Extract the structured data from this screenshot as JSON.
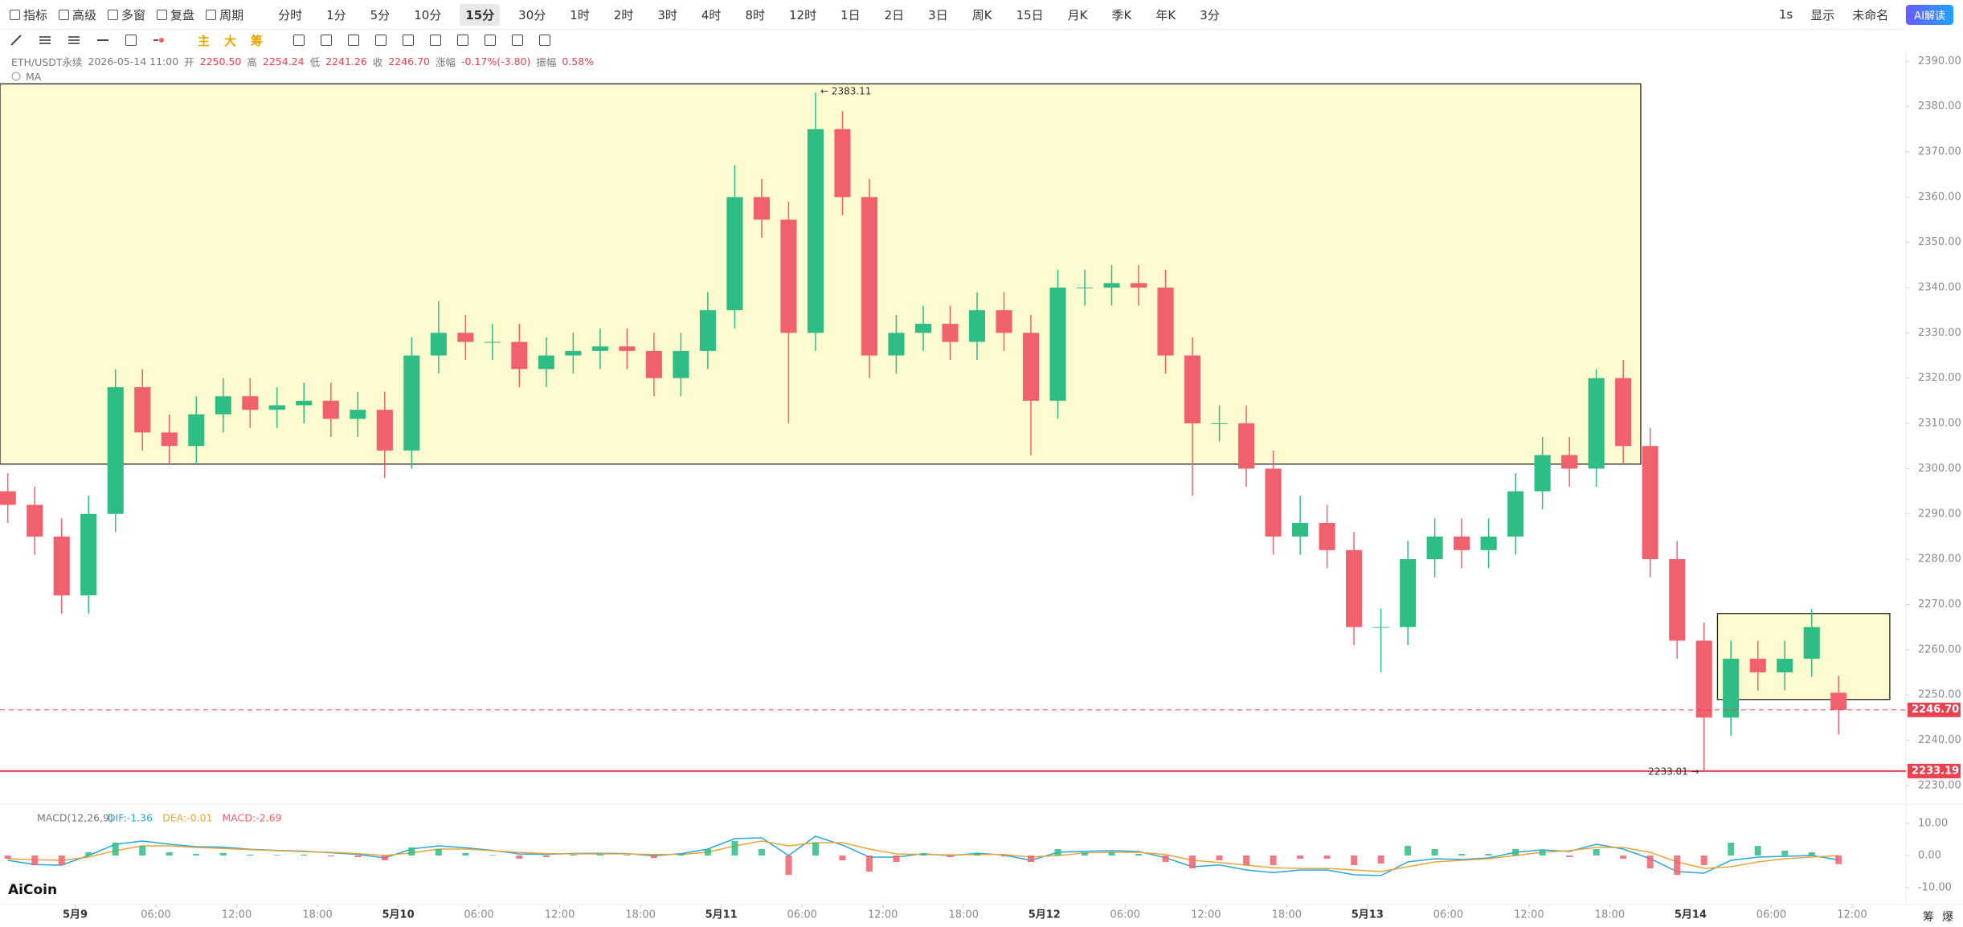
{
  "ui": {
    "toolbar_left": [
      "指标",
      "高级",
      "多窗",
      "复盘",
      "周期"
    ],
    "periods": [
      "分时",
      "1分",
      "5分",
      "10分",
      "15分",
      "30分",
      "1时",
      "2时",
      "3时",
      "4时",
      "8时",
      "12时",
      "1日",
      "2日",
      "3日",
      "周K",
      "15日",
      "月K",
      "季K",
      "年K",
      "3分"
    ],
    "active_period": 4,
    "toolbar_right": [
      "1s",
      "显示",
      "未命名",
      "AI解读"
    ],
    "draw_tools": [
      "主",
      "大",
      "筹"
    ],
    "info": {
      "symbol": "ETH/USDT永续",
      "time": "2026-05-14 11:00",
      "fields": [
        {
          "label": "开",
          "value": "2250.50"
        },
        {
          "label": "高",
          "value": "2254.24"
        },
        {
          "label": "低",
          "value": "2241.26"
        },
        {
          "label": "收",
          "value": "2246.70"
        },
        {
          "label": "涨幅",
          "value": "-0.17%(-3.80)"
        },
        {
          "label": "振幅",
          "value": "0.58%"
        }
      ]
    },
    "indicator": "MA",
    "logo": "AiCoin",
    "corner": [
      "筹",
      "爆"
    ]
  },
  "chart_data": [
    {
      "type": "candlestick",
      "x": [
        -5,
        -3,
        -1,
        1,
        3,
        5,
        7,
        9,
        11,
        13,
        15,
        17,
        19,
        21,
        23,
        25,
        27,
        29,
        31,
        33,
        35,
        37,
        39,
        41,
        43,
        45,
        47,
        49,
        51,
        53,
        55,
        57,
        59,
        61,
        63,
        65,
        67,
        69,
        71,
        73,
        75,
        77,
        79,
        81,
        83,
        85,
        87,
        89,
        91,
        93,
        95,
        97,
        99,
        101,
        103,
        105,
        107,
        109,
        111,
        113,
        115,
        117,
        119,
        121,
        123,
        125,
        127,
        129,
        131
      ],
      "open": [
        2295,
        2292,
        2285,
        2272,
        2290,
        2318,
        2308,
        2305,
        2312,
        2316,
        2313,
        2314,
        2315,
        2311,
        2313,
        2304,
        2325,
        2330,
        2328,
        2328,
        2322,
        2325,
        2326,
        2327,
        2326,
        2320,
        2326,
        2335,
        2360,
        2355,
        2330,
        2375,
        2360,
        2325,
        2330,
        2332,
        2328,
        2335,
        2330,
        2315,
        2340,
        2340,
        2341,
        2340,
        2325,
        2310,
        2310,
        2300,
        2285,
        2288,
        2282,
        2265,
        2265,
        2280,
        2285,
        2282,
        2285,
        2295,
        2303,
        2300,
        2320,
        2305,
        2280,
        2262,
        2245,
        2258,
        2255,
        2258,
        2250.5
      ],
      "high": [
        2299,
        2296,
        2289,
        2294,
        2322,
        2322,
        2312,
        2316,
        2320,
        2320,
        2318,
        2319,
        2319,
        2317,
        2317,
        2329,
        2337,
        2334,
        2332,
        2332,
        2329,
        2330,
        2331,
        2331,
        2330,
        2330,
        2339,
        2367,
        2364,
        2359,
        2383.11,
        2379,
        2364,
        2334,
        2336,
        2336,
        2339,
        2339,
        2334,
        2344,
        2344,
        2345,
        2345,
        2344,
        2329,
        2314,
        2314,
        2304,
        2294,
        2292,
        2286,
        2269,
        2284,
        2289,
        2289,
        2289,
        2299,
        2307,
        2307,
        2322,
        2324,
        2309,
        2284,
        2266,
        2262,
        2262,
        2262,
        2269,
        2254.24
      ],
      "low": [
        2288,
        2281,
        2268,
        2268,
        2286,
        2304,
        2301,
        2301,
        2308,
        2309,
        2309,
        2310,
        2307,
        2307,
        2298,
        2300,
        2321,
        2324,
        2324,
        2318,
        2318,
        2321,
        2322,
        2322,
        2316,
        2316,
        2322,
        2331,
        2351,
        2310,
        2326,
        2356,
        2320,
        2321,
        2326,
        2324,
        2324,
        2326,
        2303,
        2311,
        2336,
        2336,
        2336,
        2321,
        2294,
        2306,
        2296,
        2281,
        2281,
        2278,
        2261,
        2255,
        2261,
        2276,
        2278,
        2278,
        2281,
        2291,
        2296,
        2296,
        2301,
        2276,
        2258,
        2233.01,
        2241,
        2251,
        2251,
        2254,
        2241.26
      ],
      "close": [
        2292,
        2285,
        2272,
        2290,
        2318,
        2308,
        2305,
        2312,
        2316,
        2313,
        2314,
        2315,
        2311,
        2313,
        2304,
        2325,
        2330,
        2328,
        2328,
        2322,
        2325,
        2326,
        2327,
        2326,
        2320,
        2326,
        2335,
        2360,
        2355,
        2330,
        2375,
        2360,
        2325,
        2330,
        2332,
        2328,
        2335,
        2330,
        2315,
        2340,
        2340,
        2341,
        2340,
        2325,
        2310,
        2310,
        2300,
        2285,
        2288,
        2282,
        2265,
        2265,
        2280,
        2285,
        2282,
        2285,
        2295,
        2303,
        2300,
        2320,
        2305,
        2280,
        2262,
        2245,
        2258,
        2255,
        2258,
        2265,
        2246.7
      ],
      "up_color": "#2ebd85",
      "down_color": "#f0616d",
      "xlim": [
        -5.58,
        136
      ],
      "ylim": [
        2226.6,
        2392
      ],
      "xticks": [
        {
          "value": 0,
          "label": "5月9"
        },
        {
          "value": 6,
          "label": "06:00"
        },
        {
          "value": 12,
          "label": "12:00"
        },
        {
          "value": 18,
          "label": "18:00"
        },
        {
          "value": 24,
          "label": "5月10"
        },
        {
          "value": 30,
          "label": "06:00"
        },
        {
          "value": 36,
          "label": "12:00"
        },
        {
          "value": 42,
          "label": "18:00"
        },
        {
          "value": 48,
          "label": "5月11"
        },
        {
          "value": 54,
          "label": "06:00"
        },
        {
          "value": 60,
          "label": "12:00"
        },
        {
          "value": 66,
          "label": "18:00"
        },
        {
          "value": 72,
          "label": "5月12"
        },
        {
          "value": 78,
          "label": "06:00"
        },
        {
          "value": 84,
          "label": "12:00"
        },
        {
          "value": 90,
          "label": "18:00"
        },
        {
          "value": 96,
          "label": "5月13"
        },
        {
          "value": 102,
          "label": "06:00"
        },
        {
          "value": 108,
          "label": "12:00"
        },
        {
          "value": 114,
          "label": "18:00"
        },
        {
          "value": 120,
          "label": "5月14"
        },
        {
          "value": 126,
          "label": "06:00"
        },
        {
          "value": 132,
          "label": "12:00"
        }
      ],
      "yticks": [
        {
          "value": 2230,
          "label": "2230.00"
        },
        {
          "value": 2240,
          "label": "2240.00"
        },
        {
          "value": 2250,
          "label": "2250.00"
        },
        {
          "value": 2260,
          "label": "2260.00"
        },
        {
          "value": 2270,
          "label": "2270.00"
        },
        {
          "value": 2280,
          "label": "2280.00"
        },
        {
          "value": 2290,
          "label": "2290.00"
        },
        {
          "value": 2300,
          "label": "2300.00"
        },
        {
          "value": 2310,
          "label": "2310.00"
        },
        {
          "value": 2320,
          "label": "2320.00"
        },
        {
          "value": 2330,
          "label": "2330.00"
        },
        {
          "value": 2340,
          "label": "2340.00"
        },
        {
          "value": 2350,
          "label": "2350.00"
        },
        {
          "value": 2360,
          "label": "2360.00"
        },
        {
          "value": 2370,
          "label": "2370.00"
        },
        {
          "value": 2380,
          "label": "2380.00"
        },
        {
          "value": 2390,
          "label": "2390.00"
        }
      ],
      "zones": [
        {
          "xlim": [
            -5.58,
            116.3
          ],
          "ylim": [
            2301,
            2385
          ],
          "color": "#fffbd0"
        },
        {
          "xlim": [
            122,
            134.8
          ],
          "ylim": [
            2249,
            2268
          ],
          "color": "#fffbd0"
        }
      ],
      "price_lines": [
        {
          "value": 2246.7,
          "label": "2246.70",
          "style": "dashed",
          "color": "#e8414f"
        },
        {
          "value": 2233.19,
          "label": "2233.19",
          "style": "solid",
          "color": "#e8414f"
        }
      ],
      "annotations": [
        {
          "label": "← 2383.11",
          "value": 2383.11,
          "x": 55,
          "anchor": "start"
        },
        {
          "label": "2233.01 →",
          "value": 2233.01,
          "x": 121,
          "anchor": "end"
        }
      ]
    },
    {
      "type": "macd",
      "title": "MACD(12,26,9)",
      "x": [
        -5,
        -3,
        -1,
        1,
        3,
        5,
        7,
        9,
        11,
        13,
        15,
        17,
        19,
        21,
        23,
        25,
        27,
        29,
        31,
        33,
        35,
        37,
        39,
        41,
        43,
        45,
        47,
        49,
        51,
        53,
        55,
        57,
        59,
        61,
        63,
        65,
        67,
        69,
        71,
        73,
        75,
        77,
        79,
        81,
        83,
        85,
        87,
        89,
        91,
        93,
        95,
        97,
        99,
        101,
        103,
        105,
        107,
        109,
        111,
        113,
        115,
        117,
        119,
        121,
        123,
        125,
        127,
        129,
        131
      ],
      "xlim": [
        -5.58,
        136
      ],
      "ylim": [
        -14.25,
        15
      ],
      "yticks": [
        {
          "value": 10,
          "label": "10.00"
        },
        {
          "value": 0,
          "label": "0.00"
        },
        {
          "value": -10,
          "label": "-10.00"
        }
      ],
      "up_color": "#2ebd85",
      "down_color": "#f0616d",
      "series": [
        {
          "name": "DIF:-1.36",
          "color": "#27a6d8",
          "kind": "line",
          "values": [
            -1.5,
            -2.8,
            -3,
            0,
            3.5,
            4.5,
            3.5,
            2.75,
            2.6,
            1.95,
            1.6,
            1.35,
            0.85,
            0.35,
            -0.75,
            2.05,
            3,
            2.4,
            1.6,
            0.5,
            0.35,
            0.65,
            0.7,
            0.6,
            -0.1,
            0.55,
            2,
            5.25,
            5.5,
            0,
            6,
            3.25,
            -0.5,
            -0.5,
            0.55,
            -0.05,
            0.7,
            0.15,
            -1.5,
            1,
            1.3,
            1.5,
            1.25,
            -0.7,
            -3.5,
            -2.95,
            -4.5,
            -5.3,
            -4.5,
            -4.5,
            -6,
            -6.25,
            -2,
            -1,
            -1.25,
            -0.75,
            1,
            1.75,
            1.25,
            3.5,
            2,
            -1,
            -5,
            -5.5,
            -1.5,
            -0.5,
            -0.25,
            0,
            -1.36
          ]
        },
        {
          "name": "DEA:-0.01",
          "color": "#eaa53a",
          "kind": "line",
          "values": [
            -1,
            -1.3,
            -1.5,
            -0.5,
            1.5,
            3,
            3,
            2.5,
            2.2,
            1.8,
            1.5,
            1.2,
            1,
            0.6,
            0,
            0.8,
            2,
            2,
            1.5,
            1,
            0.6,
            0.5,
            0.5,
            0.5,
            0.3,
            0.3,
            1,
            3,
            4.5,
            3,
            4,
            4,
            2,
            0.5,
            0.3,
            0.2,
            0.3,
            0.3,
            -0.5,
            0,
            0.8,
            1,
            1,
            0.3,
            -1.5,
            -2.2,
            -3,
            -3.8,
            -4,
            -4,
            -4.5,
            -5,
            -3.5,
            -2,
            -1.5,
            -1,
            0,
            1,
            1.5,
            2.5,
            2.5,
            1,
            -2,
            -4,
            -3.5,
            -2,
            -1,
            -0.5,
            -0.01
          ]
        },
        {
          "name": "MACD:-2.69",
          "color": "#f0616d",
          "kind": "bar",
          "values": [
            -1,
            -3,
            -3,
            1,
            4,
            3,
            1,
            0.5,
            0.8,
            0.3,
            0.2,
            0.3,
            -0.3,
            -0.5,
            -1.5,
            2.5,
            2,
            0.8,
            0.2,
            -1,
            -0.5,
            0.3,
            0.4,
            0.2,
            -0.8,
            0.5,
            2,
            4.5,
            2,
            -6,
            4,
            -1.5,
            -5,
            -2,
            0.5,
            -0.5,
            0.8,
            -0.3,
            -2,
            2,
            1,
            1,
            0.5,
            -2,
            -4,
            -1.5,
            -3,
            -3,
            -1,
            -1,
            -3,
            -2.5,
            3,
            2,
            0.5,
            0.5,
            2,
            1.5,
            -0.5,
            2,
            -1,
            -4,
            -6,
            -3,
            4,
            3,
            1.5,
            1,
            -2.69
          ]
        }
      ]
    }
  ]
}
